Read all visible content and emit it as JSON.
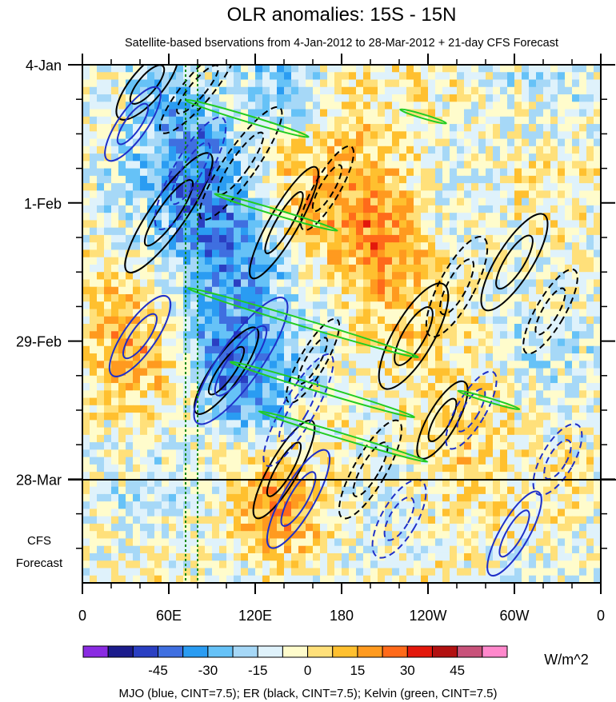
{
  "chart_data": {
    "type": "heatmap",
    "title": "OLR anomalies: 15S - 15N",
    "subtitle": "Satellite-based bservations from 4-Jan-2012 to 28-Mar-2012 + 21-day CFS Forecast",
    "x_tick_labels": [
      "0",
      "60E",
      "120E",
      "180",
      "120W",
      "60W",
      "0"
    ],
    "x_ticks_lon": [
      0,
      60,
      120,
      180,
      240,
      300,
      360
    ],
    "y_tick_labels": [
      "4-Jan",
      "1-Feb",
      "29-Feb",
      "28-Mar"
    ],
    "y_ticks_day": [
      0,
      28,
      56,
      84
    ],
    "forecast_label_line1": "CFS",
    "forecast_label_line2": "Forecast",
    "forecast_days": 21,
    "colorbar": {
      "unit": "W/m^2",
      "levels": [
        -45,
        -30,
        -15,
        0,
        15,
        30,
        45
      ],
      "colors": [
        "#8a2be2",
        "#1c1c8c",
        "#2a3fc2",
        "#3f6fe0",
        "#2a9cf2",
        "#66c2f7",
        "#a6d8f7",
        "#dff2fb",
        "#fffccc",
        "#ffe07a",
        "#ffc02f",
        "#ff9a1f",
        "#ff6a1a",
        "#e3180c",
        "#b21111",
        "#c8527a",
        "#ff88cc"
      ],
      "tick_labels": [
        "-45",
        "-30",
        "-15",
        "0",
        "15",
        "30",
        "45"
      ]
    },
    "footer": "MJO (blue, CINT=7.5); ER (black, CINT=7.5); Kelvin (green, CINT=7.5)",
    "contour_colors": {
      "mjo": "#1f2fc8",
      "er": "#000000",
      "kelvin": "#22cc22",
      "marker": "#118811"
    },
    "reference_lines_lon": [
      73,
      80
    ],
    "convective_bands": [
      {
        "lon": 95,
        "day": 37,
        "value": -28,
        "slope": 0.35
      },
      {
        "lon": 110,
        "day": 65,
        "value": -32,
        "slope": 0.3
      },
      {
        "lon": 80,
        "day": 15,
        "value": -22,
        "slope": 0.3
      },
      {
        "lon": 150,
        "day": 8,
        "value": -18,
        "slope": 0.4
      }
    ],
    "dry_bands": [
      {
        "lon": 210,
        "day": 35,
        "value": 28
      },
      {
        "lon": 170,
        "day": 18,
        "value": 24
      },
      {
        "lon": 140,
        "day": 85,
        "value": 26
      },
      {
        "lon": 30,
        "day": 55,
        "value": 18
      },
      {
        "lon": 260,
        "day": 80,
        "value": 16
      }
    ]
  }
}
